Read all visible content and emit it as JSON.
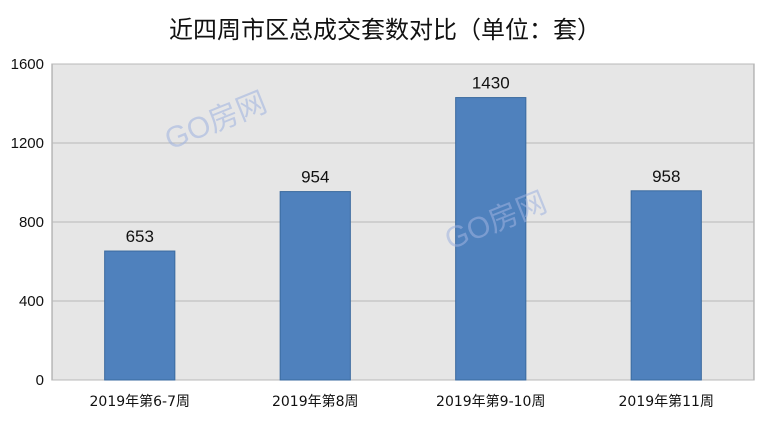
{
  "chart_data": {
    "type": "bar",
    "title": "近四周市区总成交套数对比（单位：套）",
    "categories": [
      "2019年第6-7周",
      "2019年第8周",
      "2019年第9-10周",
      "2019年第11周"
    ],
    "values": [
      653,
      954,
      1430,
      958
    ],
    "ylim": [
      0,
      1600
    ],
    "yticks": [
      0,
      400,
      800,
      1200,
      1600
    ],
    "xlabel": "",
    "ylabel": "",
    "grid": true,
    "legend": "none"
  },
  "colors": {
    "bar": "#4f81bd",
    "bar_edge": "#3a6a9f",
    "plot_bg": "#e6e6e6",
    "gridline": "#b8b8b8"
  },
  "watermark": "GO房网"
}
